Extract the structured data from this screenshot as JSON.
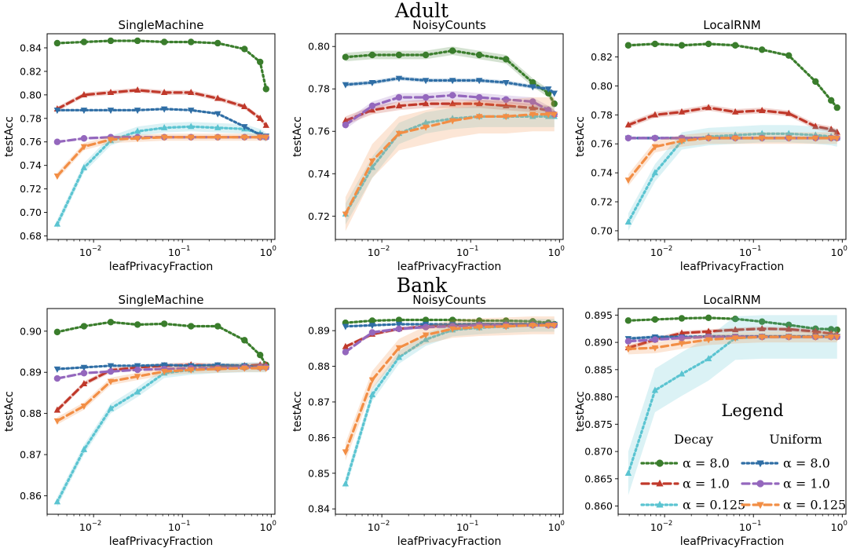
{
  "sections": [
    {
      "title": "Adult"
    },
    {
      "title": "Bank"
    }
  ],
  "legend": {
    "title": "Legend",
    "groups": [
      "Decay",
      "Uniform"
    ],
    "entries": [
      {
        "group": "Decay",
        "label": "α = 8.0",
        "color": "#3a7d2c",
        "marker": "circle",
        "dash": "dotted"
      },
      {
        "group": "Decay",
        "label": "α = 1.0",
        "color": "#c0392b",
        "marker": "triangle-up",
        "dash": "dashed"
      },
      {
        "group": "Decay",
        "label": "α = 0.125",
        "color": "#5bc4d1",
        "marker": "triangle-up",
        "dash": "dotted"
      },
      {
        "group": "Uniform",
        "label": "α = 8.0",
        "color": "#2f6ea5",
        "marker": "triangle-down",
        "dash": "dotted"
      },
      {
        "group": "Uniform",
        "label": "α = 1.0",
        "color": "#9467bd",
        "marker": "circle",
        "dash": "dashed"
      },
      {
        "group": "Uniform",
        "label": "α = 0.125",
        "color": "#f28e45",
        "marker": "triangle-down",
        "dash": "dashed"
      }
    ]
  },
  "chart_data": [
    {
      "type": "line",
      "section": "Adult",
      "title": "SingleMachine",
      "xlabel": "leafPrivacyFraction",
      "ylabel": "testAcc",
      "xscale": "log",
      "xlim": [
        0.003,
        1.1
      ],
      "ylim": [
        0.677,
        0.852
      ],
      "xticks": [
        0.01,
        0.1,
        1
      ],
      "xtick_labels": [
        [
          "10",
          "−2"
        ],
        [
          "10",
          "−1"
        ],
        [
          "10",
          "0"
        ]
      ],
      "yticks": [
        0.68,
        0.7,
        0.72,
        0.74,
        0.76,
        0.78,
        0.8,
        0.82,
        0.84
      ],
      "ytick_labels": [
        "0.68",
        "0.70",
        "0.72",
        "0.74",
        "0.76",
        "0.78",
        "0.80",
        "0.82",
        "0.84"
      ],
      "x": [
        0.0039,
        0.0078,
        0.0156,
        0.03125,
        0.0625,
        0.125,
        0.25,
        0.5,
        0.75,
        0.875
      ],
      "series": [
        {
          "style": 0,
          "values": [
            0.844,
            0.845,
            0.846,
            0.846,
            0.845,
            0.845,
            0.844,
            0.839,
            0.828,
            0.805
          ],
          "band": 0.001
        },
        {
          "style": 1,
          "values": [
            0.788,
            0.8,
            0.802,
            0.804,
            0.802,
            0.802,
            0.797,
            0.79,
            0.78,
            0.774
          ],
          "band": 0.002
        },
        {
          "style": 2,
          "values": [
            0.69,
            0.738,
            0.761,
            0.769,
            0.772,
            0.773,
            0.772,
            0.771,
            0.767,
            0.764
          ],
          "band": 0.004
        },
        {
          "style": 3,
          "values": [
            0.787,
            0.787,
            0.787,
            0.787,
            0.788,
            0.787,
            0.784,
            0.773,
            0.766,
            0.765
          ],
          "band": 0.001
        },
        {
          "style": 4,
          "values": [
            0.76,
            0.763,
            0.764,
            0.764,
            0.764,
            0.764,
            0.764,
            0.764,
            0.764,
            0.764
          ],
          "band": 0.001
        },
        {
          "style": 5,
          "values": [
            0.731,
            0.756,
            0.762,
            0.763,
            0.764,
            0.764,
            0.764,
            0.764,
            0.764,
            0.764
          ],
          "band": 0.003
        }
      ]
    },
    {
      "type": "line",
      "section": "Adult",
      "title": "NoisyCounts",
      "xlabel": "leafPrivacyFraction",
      "ylabel": "testAcc",
      "xscale": "log",
      "xlim": [
        0.003,
        1.1
      ],
      "ylim": [
        0.709,
        0.806
      ],
      "xticks": [
        0.01,
        0.1,
        1
      ],
      "xtick_labels": [
        [
          "10",
          "−2"
        ],
        [
          "10",
          "−1"
        ],
        [
          "10",
          "0"
        ]
      ],
      "yticks": [
        0.72,
        0.74,
        0.76,
        0.78,
        0.8
      ],
      "ytick_labels": [
        "0.72",
        "0.74",
        "0.76",
        "0.78",
        "0.80"
      ],
      "x": [
        0.0039,
        0.0078,
        0.0156,
        0.03125,
        0.0625,
        0.125,
        0.25,
        0.5,
        0.75,
        0.875
      ],
      "series": [
        {
          "style": 0,
          "values": [
            0.795,
            0.796,
            0.796,
            0.796,
            0.798,
            0.796,
            0.794,
            0.783,
            0.778,
            0.773
          ],
          "band": 0.002
        },
        {
          "style": 1,
          "values": [
            0.765,
            0.77,
            0.772,
            0.773,
            0.773,
            0.773,
            0.772,
            0.771,
            0.77,
            0.768
          ],
          "band": 0.002
        },
        {
          "style": 2,
          "values": [
            0.721,
            0.743,
            0.759,
            0.764,
            0.766,
            0.767,
            0.767,
            0.767,
            0.767,
            0.767
          ],
          "band": 0.005
        },
        {
          "style": 3,
          "values": [
            0.782,
            0.783,
            0.785,
            0.784,
            0.784,
            0.784,
            0.783,
            0.781,
            0.78,
            0.778
          ],
          "band": 0.001
        },
        {
          "style": 4,
          "values": [
            0.763,
            0.772,
            0.776,
            0.776,
            0.777,
            0.776,
            0.775,
            0.774,
            0.77,
            0.768
          ],
          "band": 0.002
        },
        {
          "style": 5,
          "values": [
            0.721,
            0.746,
            0.759,
            0.762,
            0.765,
            0.767,
            0.767,
            0.768,
            0.768,
            0.768
          ],
          "band": 0.008
        }
      ]
    },
    {
      "type": "line",
      "section": "Adult",
      "title": "LocalRNM",
      "xlabel": "leafPrivacyFraction",
      "ylabel": "testAcc",
      "xscale": "log",
      "xlim": [
        0.003,
        1.1
      ],
      "ylim": [
        0.694,
        0.836
      ],
      "xticks": [
        0.01,
        0.1,
        1
      ],
      "xtick_labels": [
        [
          "10",
          "−2"
        ],
        [
          "10",
          "−1"
        ],
        [
          "10",
          "0"
        ]
      ],
      "yticks": [
        0.7,
        0.72,
        0.74,
        0.76,
        0.78,
        0.8,
        0.82
      ],
      "ytick_labels": [
        "0.70",
        "0.72",
        "0.74",
        "0.76",
        "0.78",
        "0.80",
        "0.82"
      ],
      "x": [
        0.0039,
        0.0078,
        0.0156,
        0.03125,
        0.0625,
        0.125,
        0.25,
        0.5,
        0.75,
        0.875
      ],
      "series": [
        {
          "style": 0,
          "values": [
            0.828,
            0.829,
            0.828,
            0.829,
            0.828,
            0.825,
            0.821,
            0.803,
            0.79,
            0.785
          ],
          "band": 0.001
        },
        {
          "style": 1,
          "values": [
            0.773,
            0.78,
            0.782,
            0.785,
            0.782,
            0.783,
            0.781,
            0.772,
            0.77,
            0.768
          ],
          "band": 0.002
        },
        {
          "style": 2,
          "values": [
            0.706,
            0.74,
            0.762,
            0.765,
            0.766,
            0.767,
            0.767,
            0.766,
            0.765,
            0.764
          ],
          "band": 0.006
        },
        {
          "style": 3,
          "values": [
            0.764,
            0.764,
            0.764,
            0.764,
            0.764,
            0.764,
            0.764,
            0.764,
            0.764,
            0.764
          ],
          "band": 0.001
        },
        {
          "style": 4,
          "values": [
            0.764,
            0.764,
            0.764,
            0.764,
            0.764,
            0.764,
            0.764,
            0.764,
            0.764,
            0.764
          ],
          "band": 0.001
        },
        {
          "style": 5,
          "values": [
            0.735,
            0.758,
            0.762,
            0.764,
            0.764,
            0.764,
            0.764,
            0.764,
            0.764,
            0.764
          ],
          "band": 0.004
        }
      ]
    },
    {
      "type": "line",
      "section": "Bank",
      "title": "SingleMachine",
      "xlabel": "leafPrivacyFraction",
      "ylabel": "testAcc",
      "xscale": "log",
      "xlim": [
        0.003,
        1.1
      ],
      "ylim": [
        0.8555,
        0.9055
      ],
      "xticks": [
        0.01,
        0.1,
        1
      ],
      "xtick_labels": [
        [
          "10",
          "−2"
        ],
        [
          "10",
          "−1"
        ],
        [
          "10",
          "0"
        ]
      ],
      "yticks": [
        0.86,
        0.87,
        0.88,
        0.89,
        0.9
      ],
      "ytick_labels": [
        "0.86",
        "0.87",
        "0.88",
        "0.89",
        "0.90"
      ],
      "x": [
        0.0039,
        0.0078,
        0.0156,
        0.03125,
        0.0625,
        0.125,
        0.25,
        0.5,
        0.75,
        0.875
      ],
      "series": [
        {
          "style": 0,
          "values": [
            0.8998,
            0.9012,
            0.9022,
            0.9016,
            0.9018,
            0.9012,
            0.9012,
            0.8978,
            0.8942,
            0.8918
          ],
          "band": 0.0003
        },
        {
          "style": 1,
          "values": [
            0.8808,
            0.8872,
            0.8905,
            0.8912,
            0.8916,
            0.8918,
            0.8916,
            0.8916,
            0.8918,
            0.8918
          ],
          "band": 0.0006
        },
        {
          "style": 2,
          "values": [
            0.8585,
            0.8712,
            0.8812,
            0.8852,
            0.8898,
            0.8906,
            0.891,
            0.8912,
            0.8912,
            0.8912
          ],
          "band": 0.0012
        },
        {
          "style": 3,
          "values": [
            0.8908,
            0.8912,
            0.8916,
            0.8916,
            0.8918,
            0.8916,
            0.8918,
            0.8916,
            0.8912,
            0.8912
          ],
          "band": 0.0002
        },
        {
          "style": 4,
          "values": [
            0.8885,
            0.8898,
            0.8902,
            0.8906,
            0.8908,
            0.891,
            0.891,
            0.8912,
            0.8912,
            0.8912
          ],
          "band": 0.0003
        },
        {
          "style": 5,
          "values": [
            0.8782,
            0.8818,
            0.8878,
            0.889,
            0.8902,
            0.8906,
            0.8908,
            0.891,
            0.891,
            0.891
          ],
          "band": 0.0009
        }
      ]
    },
    {
      "type": "line",
      "section": "Bank",
      "title": "NoisyCounts",
      "xlabel": "leafPrivacyFraction",
      "ylabel": "testAcc",
      "xscale": "log",
      "xlim": [
        0.003,
        1.1
      ],
      "ylim": [
        0.8385,
        0.8962
      ],
      "xticks": [
        0.01,
        0.1,
        1
      ],
      "xtick_labels": [
        [
          "10",
          "−2"
        ],
        [
          "10",
          "−1"
        ],
        [
          "10",
          "0"
        ]
      ],
      "yticks": [
        0.84,
        0.85,
        0.86,
        0.87,
        0.88,
        0.89
      ],
      "ytick_labels": [
        "0.84",
        "0.85",
        "0.86",
        "0.87",
        "0.88",
        "0.89"
      ],
      "x": [
        0.0039,
        0.0078,
        0.0156,
        0.03125,
        0.0625,
        0.125,
        0.25,
        0.5,
        0.75,
        0.875
      ],
      "series": [
        {
          "style": 0,
          "values": [
            0.8922,
            0.8928,
            0.893,
            0.893,
            0.893,
            0.8928,
            0.8928,
            0.8926,
            0.8922,
            0.8918
          ],
          "band": 0.0002
        },
        {
          "style": 1,
          "values": [
            0.8855,
            0.889,
            0.8905,
            0.8912,
            0.8915,
            0.8918,
            0.8918,
            0.8918,
            0.8916,
            0.8915
          ],
          "band": 0.0005
        },
        {
          "style": 2,
          "values": [
            0.847,
            0.872,
            0.8825,
            0.8875,
            0.8902,
            0.8908,
            0.8912,
            0.8915,
            0.8915,
            0.8915
          ],
          "band": 0.0018
        },
        {
          "style": 3,
          "values": [
            0.8912,
            0.8915,
            0.8918,
            0.8918,
            0.8918,
            0.8918,
            0.8918,
            0.8918,
            0.8918,
            0.8918
          ],
          "band": 0.0002
        },
        {
          "style": 4,
          "values": [
            0.884,
            0.8895,
            0.8905,
            0.891,
            0.8912,
            0.8915,
            0.8915,
            0.8915,
            0.8915,
            0.8915
          ],
          "band": 0.0005
        },
        {
          "style": 5,
          "values": [
            0.856,
            0.8762,
            0.8852,
            0.8888,
            0.8905,
            0.891,
            0.8912,
            0.8915,
            0.8915,
            0.8915
          ],
          "band": 0.0025
        }
      ]
    },
    {
      "type": "line",
      "section": "Bank",
      "title": "LocalRNM",
      "xlabel": "leafPrivacyFraction",
      "ylabel": "testAcc",
      "xscale": "log",
      "xlim": [
        0.003,
        1.1
      ],
      "ylim": [
        0.8585,
        0.8962
      ],
      "xticks": [
        0.01,
        0.1,
        1
      ],
      "xtick_labels": [
        [
          "10",
          "−2"
        ],
        [
          "10",
          "−1"
        ],
        [
          "10",
          "0"
        ]
      ],
      "yticks": [
        0.86,
        0.865,
        0.87,
        0.875,
        0.88,
        0.885,
        0.89,
        0.895
      ],
      "ytick_labels": [
        "0.860",
        "0.865",
        "0.870",
        "0.875",
        "0.880",
        "0.885",
        "0.890",
        "0.895"
      ],
      "x": [
        0.0039,
        0.0078,
        0.0156,
        0.03125,
        0.0625,
        0.125,
        0.25,
        0.5,
        0.75,
        0.875
      ],
      "series": [
        {
          "style": 0,
          "values": [
            0.894,
            0.8942,
            0.8944,
            0.8945,
            0.8943,
            0.8938,
            0.8932,
            0.8925,
            0.8924,
            0.8923
          ],
          "band": 0.0002
        },
        {
          "style": 1,
          "values": [
            0.889,
            0.8905,
            0.8917,
            0.892,
            0.8923,
            0.8925,
            0.8924,
            0.892,
            0.8916,
            0.8914
          ],
          "band": 0.0004
        },
        {
          "style": 2,
          "values": [
            0.866,
            0.8812,
            0.8842,
            0.887,
            0.8908,
            0.891,
            0.891,
            0.891,
            0.891,
            0.891
          ],
          "band": 0.004
        },
        {
          "style": 3,
          "values": [
            0.8907,
            0.891,
            0.891,
            0.8911,
            0.8911,
            0.8911,
            0.8911,
            0.8911,
            0.8911,
            0.8911
          ],
          "band": 0.0003
        },
        {
          "style": 4,
          "values": [
            0.8902,
            0.8905,
            0.8908,
            0.891,
            0.891,
            0.891,
            0.891,
            0.891,
            0.891,
            0.891
          ],
          "band": 0.0003
        },
        {
          "style": 5,
          "values": [
            0.8888,
            0.889,
            0.8898,
            0.8905,
            0.8908,
            0.891,
            0.891,
            0.891,
            0.891,
            0.891
          ],
          "band": 0.001
        }
      ]
    }
  ]
}
